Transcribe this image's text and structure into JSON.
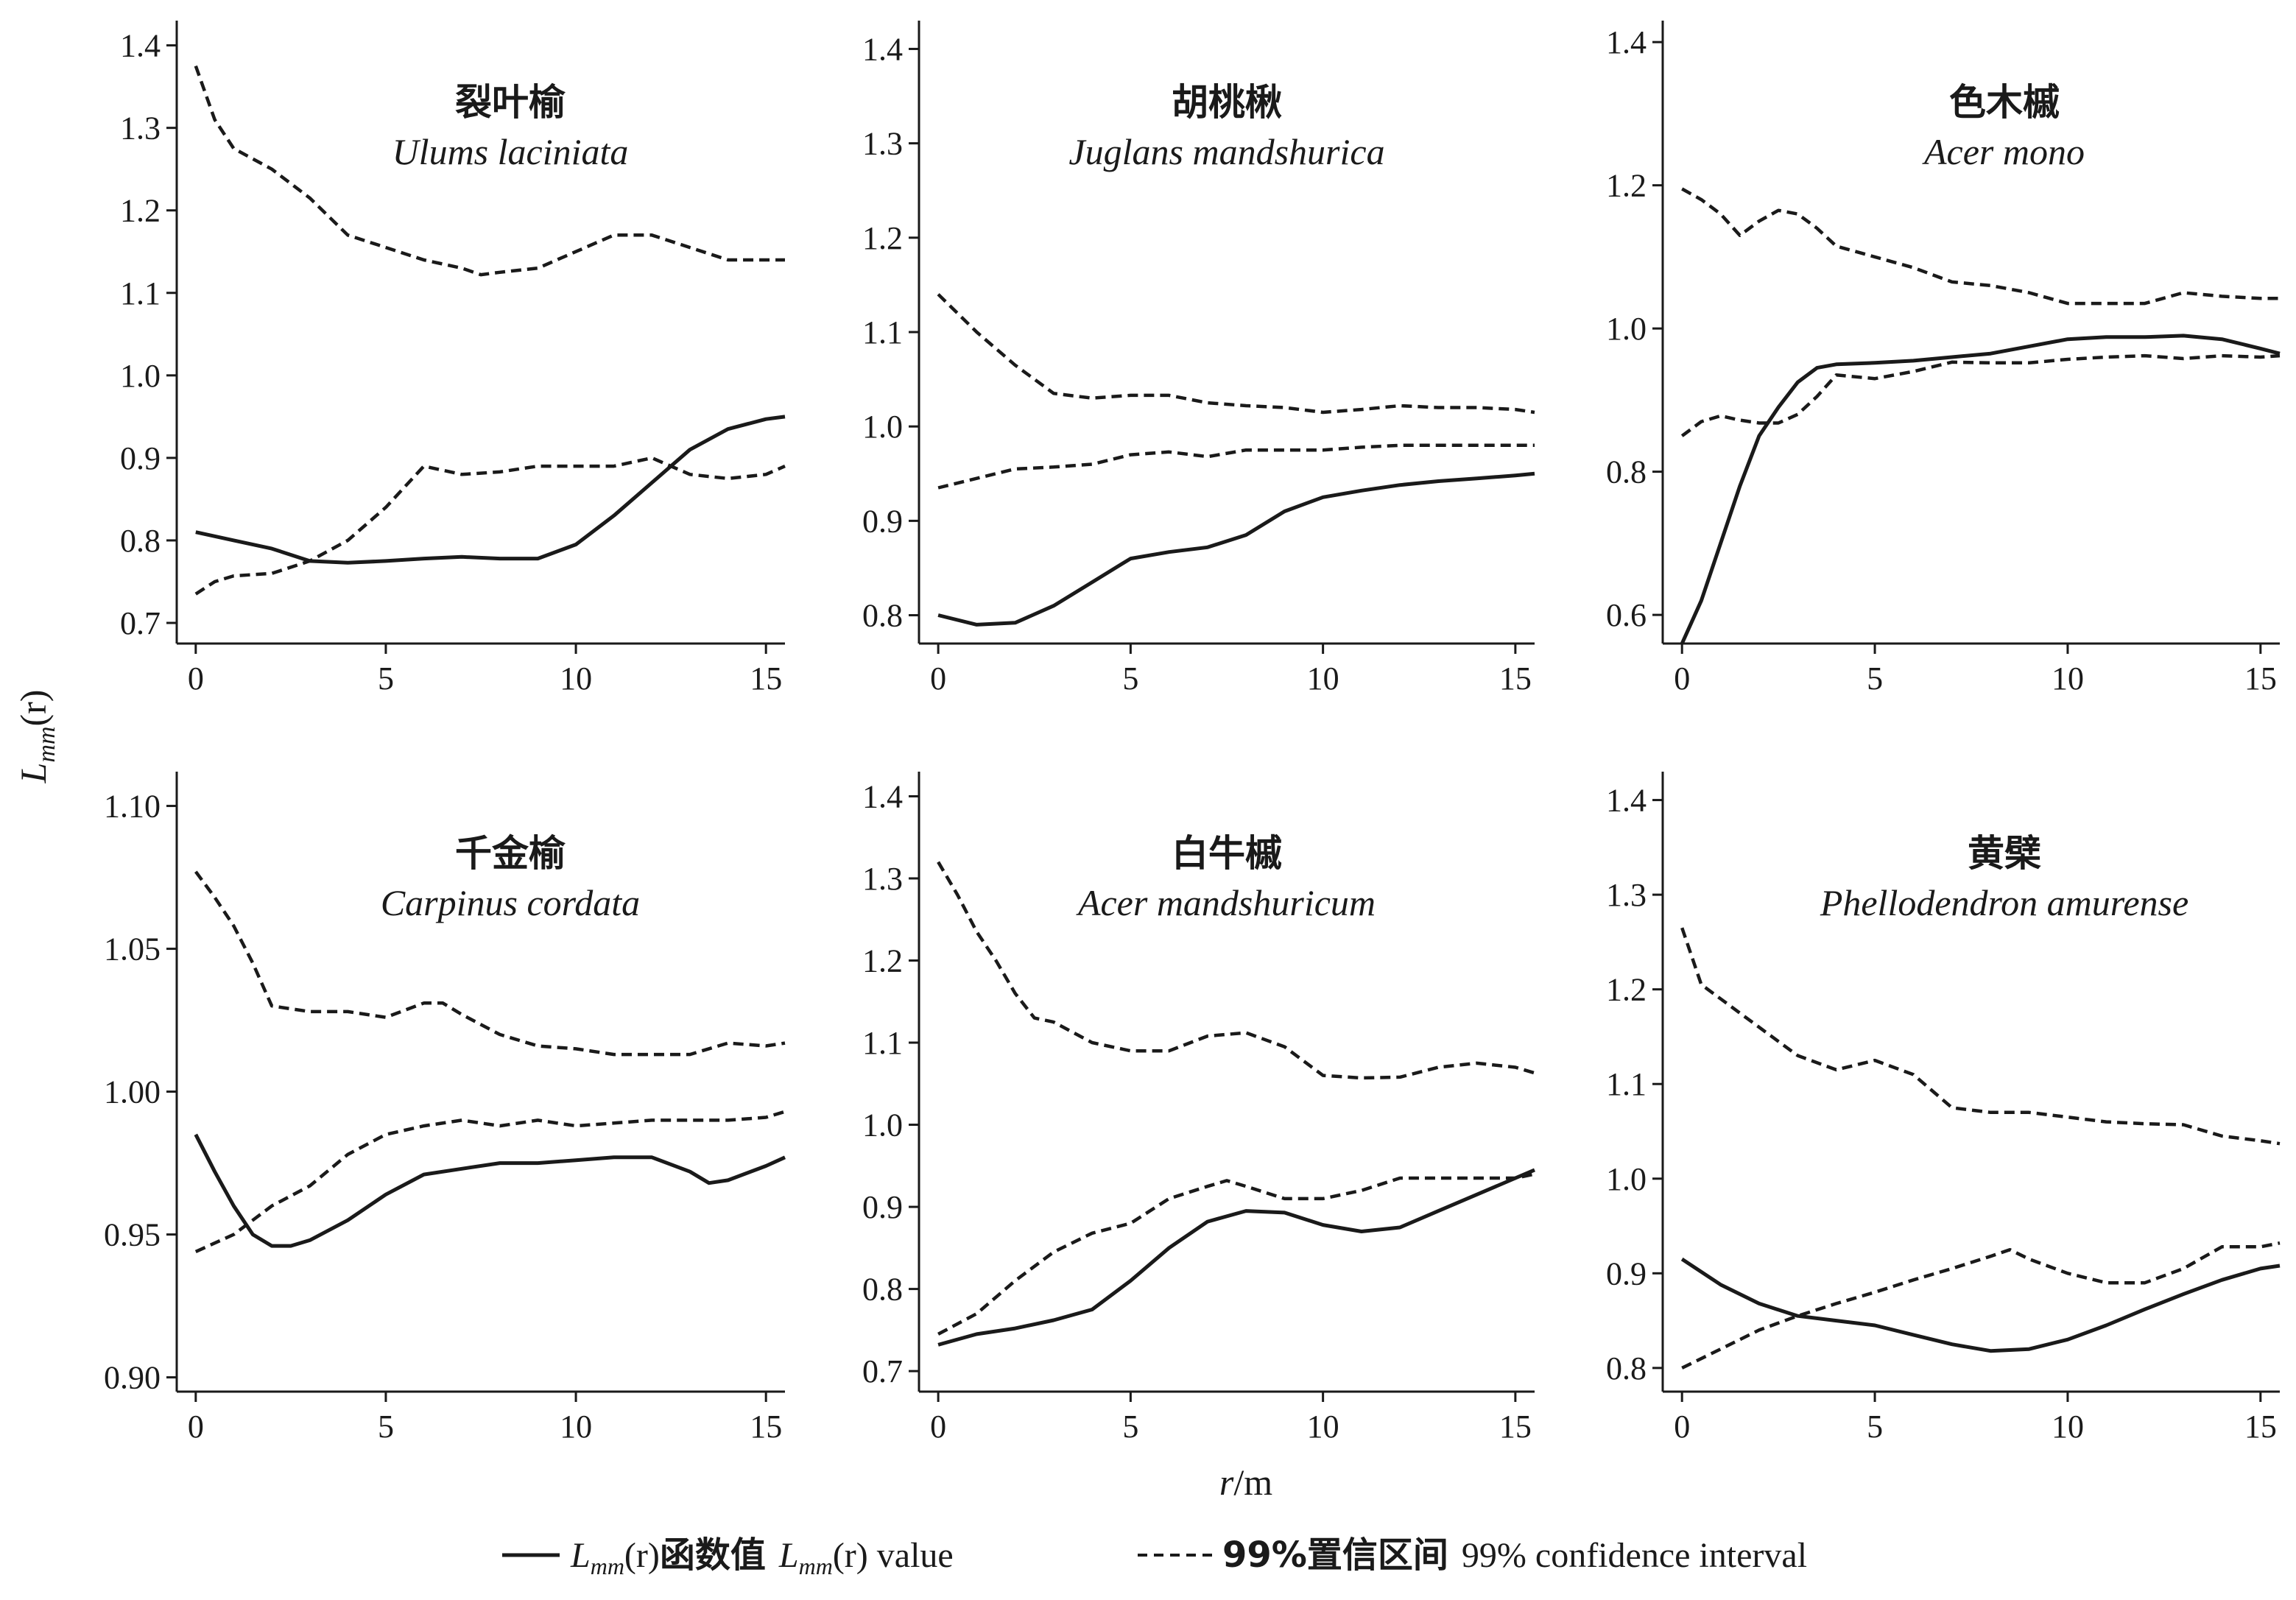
{
  "y_axis_label": {
    "main": "L",
    "sub": "mm",
    "arg": "(r)"
  },
  "x_axis_label": {
    "main": "r",
    "unit": "/m"
  },
  "legend": {
    "solid": {
      "main": "L",
      "sub": "mm",
      "arg": "(r)",
      "cn": "函数值",
      "en_main": "L",
      "en_sub": "mm",
      "en_arg": "(r)",
      "en": " value"
    },
    "dashed": {
      "cn": "99%置信区间",
      "en": "99% confidence interval"
    }
  },
  "colors": {
    "line": "#1a1a1a",
    "axis": "#1a1a1a"
  },
  "chart_data": [
    {
      "type": "line",
      "title_cn": "裂叶榆",
      "title_en": "Ulums laciniata",
      "xlim": [
        -0.5,
        15.5
      ],
      "ylim": [
        0.675,
        1.43
      ],
      "xticks": [
        0,
        5,
        10,
        15
      ],
      "xtick_labels": [
        "0",
        "5",
        "10",
        "15"
      ],
      "yticks": [
        0.7,
        0.8,
        0.9,
        1.0,
        1.1,
        1.2,
        1.3,
        1.4
      ],
      "ytick_labels": [
        "0.7",
        "0.8",
        "0.9",
        "1.0",
        "1.1",
        "1.2",
        "1.3",
        "1.4"
      ],
      "series": [
        {
          "role": "value",
          "style": "solid",
          "x": [
            0,
            1,
            2,
            3,
            4,
            5,
            6,
            7,
            8,
            9,
            10,
            11,
            12,
            13,
            14,
            15,
            15.5
          ],
          "y": [
            0.81,
            0.8,
            0.79,
            0.775,
            0.773,
            0.775,
            0.778,
            0.78,
            0.778,
            0.778,
            0.795,
            0.83,
            0.87,
            0.91,
            0.935,
            0.947,
            0.95
          ]
        },
        {
          "role": "upper",
          "style": "dashed",
          "x": [
            0,
            0.5,
            1,
            2,
            3,
            4,
            5,
            6,
            7,
            7.5,
            8,
            9,
            10,
            11,
            12,
            13,
            14,
            15,
            15.5
          ],
          "y": [
            1.375,
            1.31,
            1.275,
            1.25,
            1.215,
            1.17,
            1.155,
            1.14,
            1.13,
            1.122,
            1.125,
            1.13,
            1.15,
            1.17,
            1.17,
            1.155,
            1.14,
            1.14,
            1.14
          ]
        },
        {
          "role": "lower",
          "style": "dashed",
          "x": [
            0,
            0.5,
            1,
            2,
            3,
            4,
            5,
            6,
            7,
            8,
            9,
            10,
            11,
            12,
            13,
            14,
            15,
            15.5
          ],
          "y": [
            0.735,
            0.75,
            0.757,
            0.76,
            0.775,
            0.8,
            0.84,
            0.89,
            0.88,
            0.883,
            0.89,
            0.89,
            0.89,
            0.9,
            0.88,
            0.875,
            0.88,
            0.89
          ]
        }
      ]
    },
    {
      "type": "line",
      "title_cn": "胡桃楸",
      "title_en": "Juglans mandshurica",
      "xlim": [
        -0.5,
        15.5
      ],
      "ylim": [
        0.77,
        1.43
      ],
      "xticks": [
        0,
        5,
        10,
        15
      ],
      "xtick_labels": [
        "0",
        "5",
        "10",
        "15"
      ],
      "yticks": [
        0.8,
        0.9,
        1.0,
        1.1,
        1.2,
        1.3,
        1.4
      ],
      "ytick_labels": [
        "0.8",
        "0.9",
        "1.0",
        "1.1",
        "1.2",
        "1.3",
        "1.4"
      ],
      "series": [
        {
          "role": "value",
          "style": "solid",
          "x": [
            0,
            1,
            2,
            3,
            4,
            5,
            6,
            7,
            8,
            9,
            10,
            11,
            12,
            13,
            14,
            15,
            15.5
          ],
          "y": [
            0.8,
            0.79,
            0.792,
            0.81,
            0.835,
            0.86,
            0.867,
            0.872,
            0.885,
            0.91,
            0.925,
            0.932,
            0.938,
            0.942,
            0.945,
            0.948,
            0.95
          ]
        },
        {
          "role": "upper",
          "style": "dashed",
          "x": [
            0,
            1,
            2,
            3,
            4,
            5,
            6,
            7,
            8,
            9,
            10,
            11,
            12,
            13,
            14,
            15,
            15.5
          ],
          "y": [
            1.14,
            1.1,
            1.065,
            1.035,
            1.03,
            1.033,
            1.033,
            1.025,
            1.022,
            1.02,
            1.015,
            1.018,
            1.022,
            1.02,
            1.02,
            1.018,
            1.015
          ]
        },
        {
          "role": "lower",
          "style": "dashed",
          "x": [
            0,
            1,
            2,
            3,
            4,
            5,
            6,
            7,
            8,
            9,
            10,
            11,
            12,
            13,
            14,
            15,
            15.5
          ],
          "y": [
            0.935,
            0.945,
            0.955,
            0.957,
            0.96,
            0.97,
            0.973,
            0.968,
            0.975,
            0.975,
            0.975,
            0.978,
            0.98,
            0.98,
            0.98,
            0.98,
            0.98
          ]
        }
      ]
    },
    {
      "type": "line",
      "title_cn": "色木槭",
      "title_en": "Acer mono",
      "xlim": [
        -0.5,
        15.5
      ],
      "ylim": [
        0.56,
        1.43
      ],
      "xticks": [
        0,
        5,
        10,
        15
      ],
      "xtick_labels": [
        "0",
        "5",
        "10",
        "15"
      ],
      "yticks": [
        0.6,
        0.8,
        1.0,
        1.2,
        1.4
      ],
      "ytick_labels": [
        "0.6",
        "0.8",
        "1.0",
        "1.2",
        "1.4"
      ],
      "series": [
        {
          "role": "value",
          "style": "solid",
          "x": [
            0,
            0.5,
            1,
            1.5,
            2,
            2.5,
            3,
            3.5,
            4,
            5,
            6,
            7,
            8,
            9,
            10,
            11,
            12,
            13,
            14,
            15,
            15.5
          ],
          "y": [
            0.56,
            0.62,
            0.7,
            0.78,
            0.85,
            0.89,
            0.925,
            0.945,
            0.95,
            0.952,
            0.955,
            0.96,
            0.965,
            0.975,
            0.985,
            0.988,
            0.988,
            0.99,
            0.985,
            0.972,
            0.965
          ]
        },
        {
          "role": "upper",
          "style": "dashed",
          "x": [
            0,
            0.5,
            1,
            1.5,
            2,
            2.5,
            3,
            3.5,
            4,
            5,
            6,
            7,
            8,
            9,
            10,
            11,
            12,
            13,
            14,
            15,
            15.5
          ],
          "y": [
            1.195,
            1.18,
            1.16,
            1.13,
            1.15,
            1.165,
            1.16,
            1.14,
            1.115,
            1.1,
            1.085,
            1.065,
            1.06,
            1.05,
            1.035,
            1.035,
            1.035,
            1.05,
            1.045,
            1.042,
            1.042
          ]
        },
        {
          "role": "lower",
          "style": "dashed",
          "x": [
            0,
            0.5,
            1,
            1.5,
            2,
            2.5,
            3,
            3.5,
            4,
            5,
            6,
            7,
            8,
            9,
            10,
            11,
            12,
            13,
            14,
            15,
            15.5
          ],
          "y": [
            0.85,
            0.87,
            0.878,
            0.872,
            0.868,
            0.868,
            0.88,
            0.905,
            0.935,
            0.93,
            0.94,
            0.953,
            0.952,
            0.952,
            0.957,
            0.96,
            0.962,
            0.958,
            0.962,
            0.96,
            0.962
          ]
        }
      ]
    },
    {
      "type": "line",
      "title_cn": "千金榆",
      "title_en": "Carpinus cordata",
      "xlim": [
        -0.5,
        15.5
      ],
      "ylim": [
        0.895,
        1.112
      ],
      "xticks": [
        0,
        5,
        10,
        15
      ],
      "xtick_labels": [
        "0",
        "5",
        "10",
        "15"
      ],
      "yticks": [
        0.9,
        0.95,
        1.0,
        1.05,
        1.1
      ],
      "ytick_labels": [
        "0.90",
        "0.95",
        "1.00",
        "1.05",
        "1.10"
      ],
      "series": [
        {
          "role": "value",
          "style": "solid",
          "x": [
            0,
            0.5,
            1,
            1.5,
            2,
            2.5,
            3,
            4,
            5,
            6,
            7,
            8,
            9,
            10,
            11,
            12,
            13,
            13.5,
            14,
            15,
            15.5
          ],
          "y": [
            0.985,
            0.972,
            0.96,
            0.95,
            0.946,
            0.946,
            0.948,
            0.955,
            0.964,
            0.971,
            0.973,
            0.975,
            0.975,
            0.976,
            0.977,
            0.977,
            0.972,
            0.968,
            0.969,
            0.974,
            0.977
          ]
        },
        {
          "role": "upper",
          "style": "dashed",
          "x": [
            0,
            0.5,
            1,
            1.5,
            2,
            2.5,
            3,
            4,
            5,
            6,
            6.5,
            7,
            8,
            9,
            10,
            11,
            12,
            13,
            14,
            15,
            15.5
          ],
          "y": [
            1.077,
            1.068,
            1.058,
            1.045,
            1.03,
            1.029,
            1.028,
            1.028,
            1.026,
            1.031,
            1.031,
            1.027,
            1.02,
            1.016,
            1.015,
            1.013,
            1.013,
            1.013,
            1.017,
            1.016,
            1.017
          ]
        },
        {
          "role": "lower",
          "style": "dashed",
          "x": [
            0,
            1,
            2,
            3,
            4,
            5,
            6,
            7,
            8,
            9,
            10,
            11,
            12,
            13,
            14,
            15,
            15.5
          ],
          "y": [
            0.944,
            0.95,
            0.96,
            0.967,
            0.978,
            0.985,
            0.988,
            0.99,
            0.988,
            0.99,
            0.988,
            0.989,
            0.99,
            0.99,
            0.99,
            0.991,
            0.993
          ]
        }
      ]
    },
    {
      "type": "line",
      "title_cn": "白牛槭",
      "title_en": "Acer mandshuricum",
      "xlim": [
        -0.5,
        15.5
      ],
      "ylim": [
        0.675,
        1.43
      ],
      "xticks": [
        0,
        5,
        10,
        15
      ],
      "xtick_labels": [
        "0",
        "5",
        "10",
        "15"
      ],
      "yticks": [
        0.7,
        0.8,
        0.9,
        1.0,
        1.1,
        1.2,
        1.3,
        1.4
      ],
      "ytick_labels": [
        "0.7",
        "0.8",
        "0.9",
        "1.0",
        "1.1",
        "1.2",
        "1.3",
        "1.4"
      ],
      "series": [
        {
          "role": "value",
          "style": "solid",
          "x": [
            0,
            1,
            2,
            3,
            4,
            5,
            6,
            7,
            8,
            9,
            10,
            11,
            12,
            13,
            14,
            15,
            15.5
          ],
          "y": [
            0.732,
            0.745,
            0.752,
            0.762,
            0.775,
            0.81,
            0.85,
            0.882,
            0.895,
            0.893,
            0.878,
            0.87,
            0.875,
            0.895,
            0.915,
            0.935,
            0.945
          ]
        },
        {
          "role": "upper",
          "style": "dashed",
          "x": [
            0,
            0.5,
            1,
            1.5,
            2,
            2.5,
            3,
            4,
            5,
            6,
            7,
            8,
            9,
            10,
            11,
            12,
            13,
            14,
            15,
            15.5
          ],
          "y": [
            1.32,
            1.28,
            1.235,
            1.2,
            1.16,
            1.13,
            1.125,
            1.1,
            1.09,
            1.09,
            1.108,
            1.112,
            1.095,
            1.06,
            1.057,
            1.058,
            1.07,
            1.075,
            1.07,
            1.063
          ]
        },
        {
          "role": "lower",
          "style": "dashed",
          "x": [
            0,
            1,
            2,
            3,
            4,
            5,
            6,
            7,
            7.5,
            8,
            9,
            10,
            11,
            12,
            13,
            14,
            15,
            15.5
          ],
          "y": [
            0.745,
            0.77,
            0.81,
            0.845,
            0.868,
            0.88,
            0.91,
            0.925,
            0.932,
            0.925,
            0.91,
            0.91,
            0.92,
            0.935,
            0.935,
            0.935,
            0.935,
            0.94
          ]
        }
      ]
    },
    {
      "type": "line",
      "title_cn": "黄檗",
      "title_en": "Phellodendron amurense",
      "xlim": [
        -0.5,
        15.5
      ],
      "ylim": [
        0.775,
        1.43
      ],
      "xticks": [
        0,
        5,
        10,
        15
      ],
      "xtick_labels": [
        "0",
        "5",
        "10",
        "15"
      ],
      "yticks": [
        0.8,
        0.9,
        1.0,
        1.1,
        1.2,
        1.3,
        1.4
      ],
      "ytick_labels": [
        "0.8",
        "0.9",
        "1.0",
        "1.1",
        "1.2",
        "1.3",
        "1.4"
      ],
      "series": [
        {
          "role": "value",
          "style": "solid",
          "x": [
            0,
            1,
            2,
            3,
            4,
            5,
            6,
            7,
            8,
            9,
            10,
            11,
            12,
            13,
            14,
            15,
            15.5
          ],
          "y": [
            0.915,
            0.888,
            0.868,
            0.855,
            0.85,
            0.845,
            0.835,
            0.825,
            0.818,
            0.82,
            0.83,
            0.845,
            0.862,
            0.878,
            0.893,
            0.905,
            0.908
          ]
        },
        {
          "role": "upper",
          "style": "dashed",
          "x": [
            0,
            0.5,
            1,
            2,
            3,
            4,
            5,
            6,
            7,
            8,
            9,
            10,
            11,
            12,
            13,
            14,
            15,
            15.5
          ],
          "y": [
            1.265,
            1.205,
            1.19,
            1.16,
            1.13,
            1.115,
            1.125,
            1.11,
            1.075,
            1.07,
            1.07,
            1.065,
            1.06,
            1.058,
            1.057,
            1.045,
            1.04,
            1.037
          ]
        },
        {
          "role": "lower",
          "style": "dashed",
          "x": [
            0,
            1,
            2,
            3,
            4,
            5,
            6,
            7,
            8,
            8.5,
            9,
            10,
            11,
            12,
            13,
            14,
            15,
            15.5
          ],
          "y": [
            0.8,
            0.82,
            0.84,
            0.855,
            0.868,
            0.88,
            0.893,
            0.905,
            0.918,
            0.925,
            0.915,
            0.9,
            0.89,
            0.89,
            0.905,
            0.928,
            0.928,
            0.932
          ]
        }
      ]
    }
  ]
}
